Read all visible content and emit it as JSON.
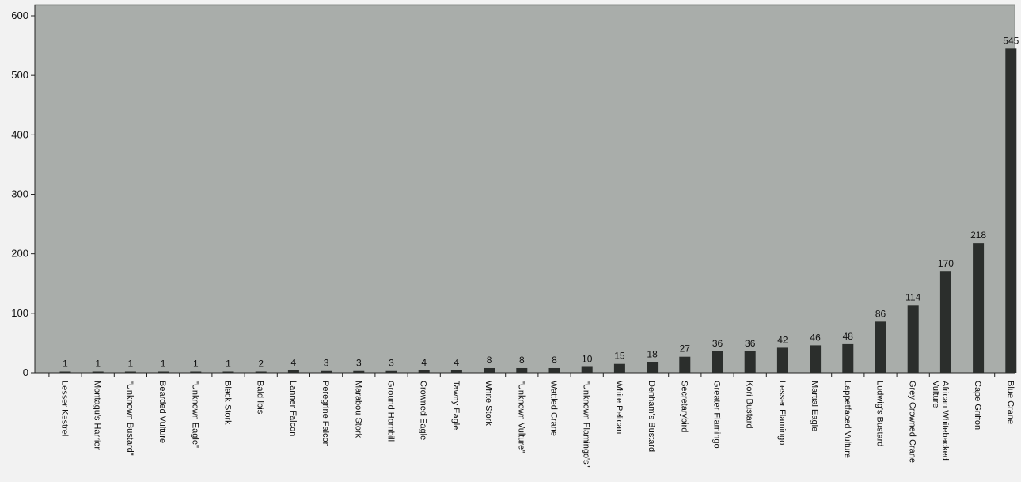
{
  "chart_data": {
    "type": "bar",
    "title": "",
    "xlabel": "",
    "ylabel": "",
    "ylim": [
      0,
      620
    ],
    "yticks": [
      0,
      100,
      200,
      300,
      400,
      500,
      600
    ],
    "grid": false,
    "legend": "none",
    "categories": [
      "Lesser Kestrel",
      "Montagu's Harrier",
      "\"Unknown Bustard\"",
      "Bearded Vulture",
      "\"Unknown Eagle\"",
      "Black Stork",
      "Bald Ibis",
      "Lanner Falcon",
      "Peregrine Falcon",
      "Marabou Stork",
      "Ground Hornbill",
      "Crowned Eagle",
      "Tawny Eagle",
      "White Stork",
      "\"Unknown Vulture\"",
      "Wattled Crane",
      "\"Unknown Flamingo's\"",
      "White Pelican",
      "Denham's Bustard",
      "Secretarybird",
      "Greater Flamingo",
      "Kori Bustard",
      "Lesser Flamingo",
      "Martial Eagle",
      "Lappetfaced Vulture",
      "Ludwig's Bustard",
      "Grey Crowned Crane",
      "African Whitebacked Vulture",
      "Cape Griffon",
      "Blue Crane"
    ],
    "values": [
      1,
      1,
      1,
      1,
      1,
      1,
      2,
      4,
      3,
      3,
      3,
      4,
      4,
      8,
      8,
      8,
      10,
      15,
      18,
      27,
      36,
      36,
      42,
      46,
      48,
      86,
      114,
      170,
      218,
      545
    ],
    "colors": {
      "plot_background": "#a9adaa",
      "page_background": "#f2f2f2",
      "bar_fill": "#2b2e2c",
      "axis": "#222222"
    }
  }
}
